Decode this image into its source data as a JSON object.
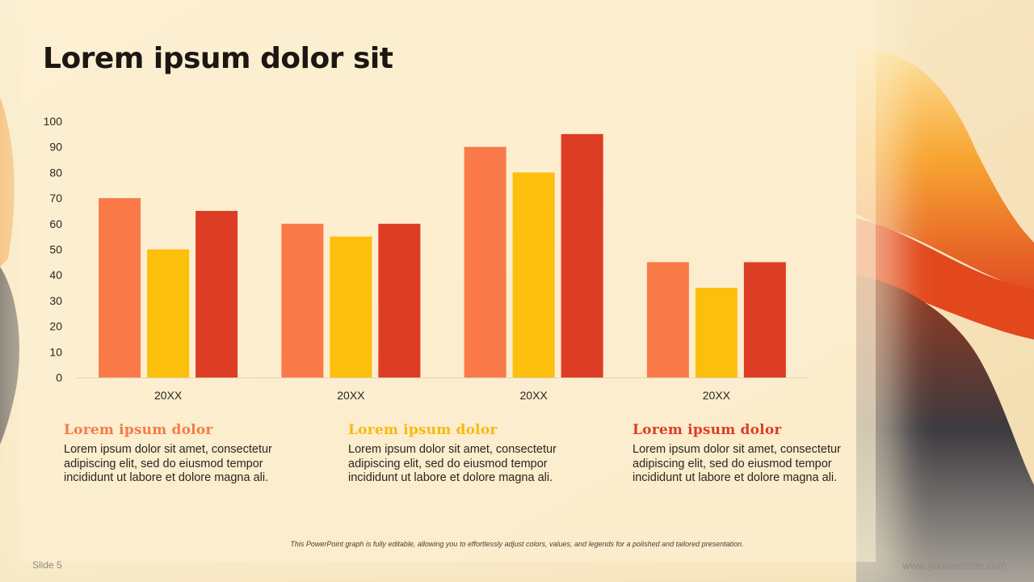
{
  "slide": {
    "title": "Lorem ipsum dolor sit",
    "slide_number": "Slide 5",
    "website": "www.yourwebsite.com",
    "footnote": "This PowerPoint graph is fully editable, allowing you to effortlessly adjust colors, values, and legends for a polished and tailored presentation."
  },
  "columns": [
    {
      "heading": "Lorem ipsum dolor",
      "color": "#f47a4a",
      "body": "Lorem ipsum dolor sit amet, consectetur adipiscing elit, sed do eiusmod tempor incididunt ut labore et dolore magna ali."
    },
    {
      "heading": "Lorem ipsum dolor",
      "color": "#f9b90c",
      "body": "Lorem ipsum dolor sit amet, consectetur adipiscing elit, sed do eiusmod tempor incididunt ut labore et dolore magna ali."
    },
    {
      "heading": "Lorem ipsum dolor",
      "color": "#dd3d24",
      "body": "Lorem ipsum dolor sit amet, consectetur adipiscing elit, sed do eiusmod tempor incididunt ut labore et dolore magna ali."
    }
  ],
  "chart_data": {
    "type": "bar",
    "categories": [
      "20XX",
      "20XX",
      "20XX",
      "20XX"
    ],
    "series": [
      {
        "values": [
          70,
          60,
          90,
          45
        ],
        "color": "#fa7a4a"
      },
      {
        "values": [
          50,
          55,
          80,
          35
        ],
        "color": "#fcbf0b"
      },
      {
        "values": [
          65,
          60,
          95,
          45
        ],
        "color": "#dd3d24"
      }
    ],
    "ylim": [
      0,
      100
    ],
    "yticks": [
      0,
      10,
      20,
      30,
      40,
      50,
      60,
      70,
      80,
      90,
      100
    ],
    "grid": false,
    "legend": "none"
  }
}
